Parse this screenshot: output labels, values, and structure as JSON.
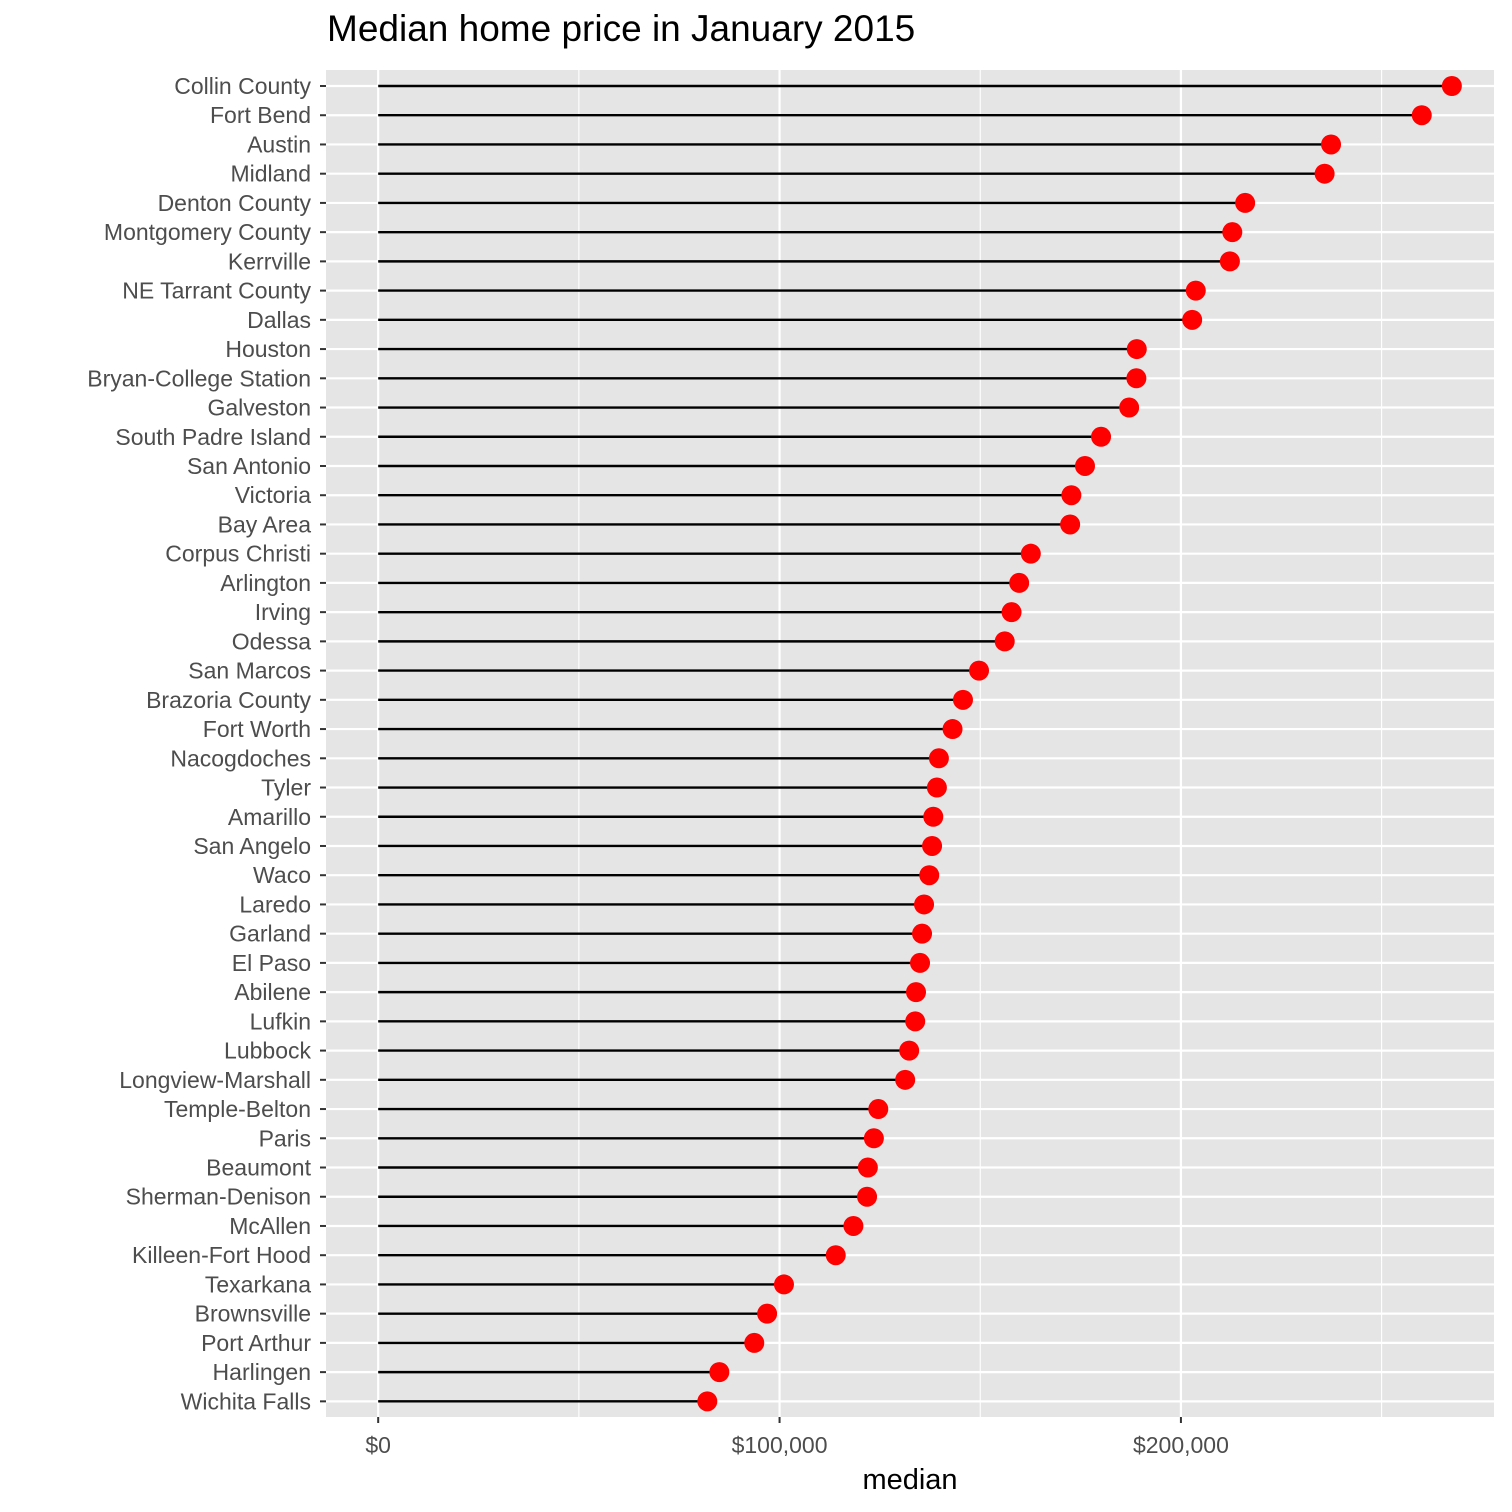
{
  "chart_data": {
    "type": "lollipop",
    "title": "Median home price in January 2015",
    "xlabel": "median",
    "ylabel": "",
    "xlim": [
      -13000,
      278000
    ],
    "x_ticks": [
      {
        "value": 0,
        "label": "$0"
      },
      {
        "value": 100000,
        "label": "$100,000"
      },
      {
        "value": 200000,
        "label": "$200,000"
      }
    ],
    "grid": true,
    "legend": "none",
    "colors": {
      "panel": "#e5e5e5",
      "grid": "#ffffff",
      "stem": "#000000",
      "point": "#ff0000",
      "tick_text": "#4d4d4d",
      "axis_title": "#000000"
    },
    "categories": [
      "Collin County",
      "Fort Bend",
      "Austin",
      "Midland",
      "Denton County",
      "Montgomery County",
      "Kerrville",
      "NE Tarrant County",
      "Dallas",
      "Houston",
      "Bryan-College Station",
      "Galveston",
      "South Padre Island",
      "San Antonio",
      "Victoria",
      "Bay Area",
      "Corpus Christi",
      "Arlington",
      "Irving",
      "Odessa",
      "San Marcos",
      "Brazoria County",
      "Fort Worth",
      "Nacogdoches",
      "Tyler",
      "Amarillo",
      "San Angelo",
      "Waco",
      "Laredo",
      "Garland",
      "El Paso",
      "Abilene",
      "Lufkin",
      "Lubbock",
      "Longview-Marshall",
      "Temple-Belton",
      "Paris",
      "Beaumont",
      "Sherman-Denison",
      "McAllen",
      "Killeen-Fort Hood",
      "Texarkana",
      "Brownsville",
      "Port Arthur",
      "Harlingen",
      "Wichita Falls"
    ],
    "values": [
      267500,
      260000,
      237400,
      235800,
      216000,
      212800,
      212200,
      203700,
      202800,
      189000,
      188900,
      187100,
      180100,
      176100,
      172700,
      172400,
      162600,
      159700,
      157800,
      156100,
      149700,
      145700,
      143100,
      139700,
      139200,
      138300,
      138000,
      137300,
      136000,
      135500,
      135000,
      134000,
      133800,
      132300,
      131300,
      124600,
      123500,
      122000,
      121800,
      118400,
      114000,
      101100,
      96900,
      93700,
      85000,
      82000
    ]
  }
}
